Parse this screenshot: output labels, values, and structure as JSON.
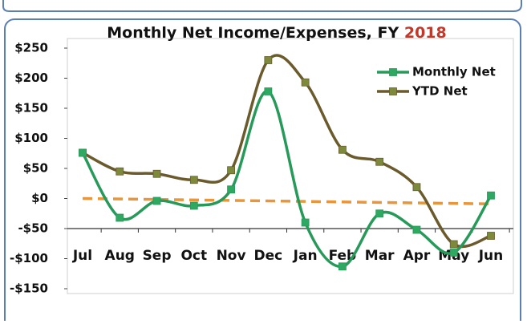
{
  "chart_data": {
    "type": "line",
    "title": "Monthly Net Income/Expenses, FY",
    "title_year": "2018",
    "title_year_color": "#c0392b",
    "categories": [
      "Jul",
      "Aug",
      "Sep",
      "Oct",
      "Nov",
      "Dec",
      "Jan",
      "Feb",
      "Mar",
      "Apr",
      "May",
      "Jun"
    ],
    "series": [
      {
        "name": "Monthly Net",
        "color": "#279a5a",
        "marker_color": "#2fa862",
        "values": [
          76,
          -32,
          -4,
          -12,
          15,
          178,
          -40,
          -113,
          -25,
          -52,
          -90,
          5
        ]
      },
      {
        "name": "YTD Net",
        "color": "#6a5a2c",
        "marker_color": "#7d8a3c",
        "values": [
          76,
          45,
          41,
          31,
          47,
          230,
          193,
          81,
          61,
          19,
          -76,
          -62
        ]
      }
    ],
    "trendline": {
      "color": "#e8963c",
      "values": [
        0,
        -9
      ]
    },
    "ylim": [
      -150,
      250
    ],
    "yticks": [
      {
        "value": -150,
        "label": "-$150"
      },
      {
        "value": -100,
        "label": "-$100"
      },
      {
        "value": -50,
        "label": "-$50"
      },
      {
        "value": 0,
        "label": "$0"
      },
      {
        "value": 50,
        "label": "$50"
      },
      {
        "value": 100,
        "label": "$100"
      },
      {
        "value": 150,
        "label": "$150"
      },
      {
        "value": 200,
        "label": "$200"
      },
      {
        "value": 250,
        "label": "$250"
      }
    ],
    "x_axis_at": -50,
    "legend": "top-right"
  }
}
